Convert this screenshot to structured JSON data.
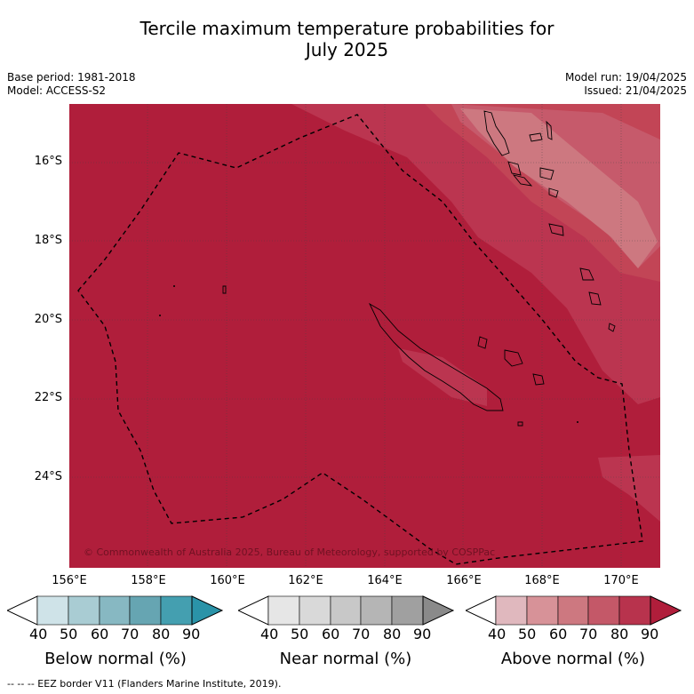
{
  "title_line1": "Tercile maximum temperature probabilities for",
  "title_line2": "July 2025",
  "meta_left": {
    "base_period": "Base period: 1981-2018",
    "model": "Model: ACCESS-S2"
  },
  "meta_right": {
    "model_run": "Model run: 19/04/2025",
    "issued": "Issued: 21/04/2025"
  },
  "copyright": "© Commonwealth of Australia 2025, Bureau of Meteorology, supported by COSPPac",
  "lat_labels": [
    "16°S",
    "18°S",
    "20°S",
    "22°S",
    "24°S"
  ],
  "lon_labels": [
    "156°E",
    "158°E",
    "160°E",
    "162°E",
    "164°E",
    "166°E",
    "168°E",
    "170°E"
  ],
  "colorbars": [
    {
      "title": "Below normal (%)",
      "ticks": [
        "40",
        "50",
        "60",
        "70",
        "80",
        "90"
      ],
      "colors": [
        "#cfe3e8",
        "#a9ccd3",
        "#87b8c2",
        "#66a5b2",
        "#449fb0",
        "#2a93a8"
      ]
    },
    {
      "title": "Near normal (%)",
      "ticks": [
        "40",
        "50",
        "60",
        "70",
        "80",
        "90"
      ],
      "colors": [
        "#e6e6e6",
        "#d9d9d9",
        "#c8c8c8",
        "#b5b5b5",
        "#a0a0a0",
        "#8a8a8a"
      ]
    },
    {
      "title": "Above normal (%)",
      "ticks": [
        "40",
        "50",
        "60",
        "70",
        "80",
        "90"
      ],
      "colors": [
        "#e0b8be",
        "#d79298",
        "#cd7880",
        "#c45868",
        "#b8334d",
        "#b01e3b"
      ]
    }
  ],
  "eez_note": "--  --  -- EEZ border V11 (Flanders Marine Institute, 2019).",
  "colors": {
    "above_90": "#b01e3b",
    "above_80": "#bb3550",
    "above_70": "#c65a6b",
    "above_60": "#cd7880"
  }
}
